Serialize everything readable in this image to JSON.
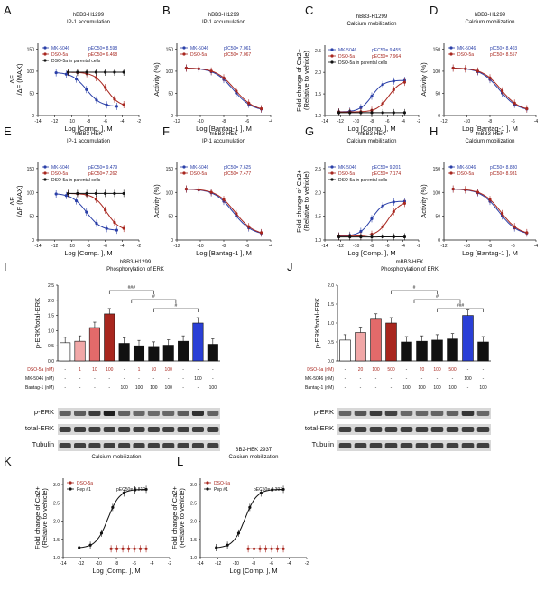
{
  "colors": {
    "blue": "#2a3fa8",
    "red": "#a8261e",
    "black": "#111111",
    "pink": "#f1a7a7",
    "salmon": "#e36a6a",
    "brightblue": "#2a3fd6"
  },
  "panels": [
    {
      "letter": "A",
      "t1": "hBB3-H1299",
      "t2": "IP-1 accumulation",
      "ylabel": "ΔF",
      "ylabel2": "/ΔF (MAX)",
      "xlabel": "Log [Comp. ], M",
      "xticks": [
        "-14",
        "-12",
        "-10",
        "-8",
        "-6",
        "-4",
        "-2"
      ],
      "yticks": [
        "0",
        "50",
        "100",
        "150"
      ],
      "legend": [
        {
          "name": "MK-5046",
          "p": "pEC50= 8.598"
        },
        {
          "name": "DSO-5a",
          "p": "pEC50= 6.468"
        },
        {
          "name": "DSO-5a in parental cells",
          "p": ""
        }
      ]
    },
    {
      "letter": "B",
      "t1": "hBB3-H1299",
      "t2": "IP-1 accumulation",
      "ylabel": "Activity (%)",
      "ylabel2": "",
      "xlabel": "Log [Bantag-1 ], M",
      "xticks": [
        "-12",
        "-10",
        "-8",
        "-6",
        "-4"
      ],
      "yticks": [
        "0",
        "50",
        "100",
        "150"
      ],
      "legend": [
        {
          "name": "MK-5046",
          "p": "pIC50= 7.061"
        },
        {
          "name": "DSO-5a",
          "p": "pIC50= 7.067"
        }
      ]
    },
    {
      "letter": "C",
      "t1": "hBB3-H1299",
      "t2": "Calcium mobilization",
      "ylabel": "Fold change of Ca2+",
      "ylabel2": "(Relative to vehicle)",
      "xlabel": "Log [Comp. ], M",
      "xticks": [
        "-14",
        "-12",
        "-10",
        "-8",
        "-6",
        "-4",
        "-2"
      ],
      "yticks": [
        "1.0",
        "1.5",
        "2.0",
        "2.5"
      ],
      "legend": [
        {
          "name": "MK-5046",
          "p": "pEC50= 9.455"
        },
        {
          "name": "DSO-5a",
          "p": "pEC50= 7.964"
        },
        {
          "name": "DSO-5a in parental cells",
          "p": ""
        }
      ]
    },
    {
      "letter": "D",
      "t1": "hBB3-H1299",
      "t2": "Calcium mobilization",
      "ylabel": "Activity (%)",
      "ylabel2": "",
      "xlabel": "Log [Bantag-1 ], M",
      "xticks": [
        "-12",
        "-10",
        "-8",
        "-6",
        "-4"
      ],
      "yticks": [
        "0",
        "50",
        "100",
        "150"
      ],
      "legend": [
        {
          "name": "MK-5046",
          "p": "pIC50= 8.403"
        },
        {
          "name": "DSO-5a",
          "p": "pIC50= 8.557"
        }
      ]
    },
    {
      "letter": "E",
      "t1": "mBB3-HEK",
      "t2": "IP-1 accumulation",
      "ylabel": "ΔF",
      "ylabel2": "/ΔF (MAX)",
      "xlabel": "Log [Comp. ], M",
      "xticks": [
        "-14",
        "-12",
        "-10",
        "-8",
        "-6",
        "-4",
        "-2"
      ],
      "yticks": [
        "0",
        "50",
        "100",
        "150"
      ],
      "legend": [
        {
          "name": "MK-5046",
          "p": "pEC50= 9.479"
        },
        {
          "name": "DSO-5a",
          "p": "pEC50= 7.262"
        },
        {
          "name": "DSO-5a in parental cells",
          "p": ""
        }
      ]
    },
    {
      "letter": "F",
      "t1": "mBB3-HEK",
      "t2": "IP-1 accumulation",
      "ylabel": "Activity (%)",
      "ylabel2": "",
      "xlabel": "Log [Bantag-1 ], M",
      "xticks": [
        "-12",
        "-10",
        "-8",
        "-6",
        "-4"
      ],
      "yticks": [
        "0",
        "50",
        "100",
        "150"
      ],
      "legend": [
        {
          "name": "MK-5046",
          "p": "pIC50= 7.625"
        },
        {
          "name": "DSO-5a",
          "p": "pIC50= 7.477"
        }
      ]
    },
    {
      "letter": "G",
      "t1": "mBB3-HEK",
      "t2": "Calcium mobilization",
      "ylabel": "Fold change of Ca2+",
      "ylabel2": "(Relative to vehicle)",
      "xlabel": "Log [Comp. ], M",
      "xticks": [
        "-14",
        "-12",
        "-10",
        "-8",
        "-6",
        "-4",
        "-2"
      ],
      "yticks": [
        "1.0",
        "1.5",
        "2.0",
        "2.5"
      ],
      "legend": [
        {
          "name": "MK-5046",
          "p": "pEC50= 9.201"
        },
        {
          "name": "DSO-5a",
          "p": "pEC50= 7.174"
        },
        {
          "name": "DSO-5a in parental cells",
          "p": ""
        }
      ]
    },
    {
      "letter": "H",
      "t1": "mBB3-HEK",
      "t2": "Calcium mobilization",
      "ylabel": "Activity (%)",
      "ylabel2": "",
      "xlabel": "Log [Bantag-1 ], M",
      "xticks": [
        "-12",
        "-10",
        "-8",
        "-6",
        "-4"
      ],
      "yticks": [
        "0",
        "50",
        "100",
        "150"
      ],
      "legend": [
        {
          "name": "MK-5046",
          "p": "pIC50= 8.880"
        },
        {
          "name": "DSO-5a",
          "p": "pIC50= 8.931"
        }
      ]
    },
    {
      "letter": "K",
      "t1": "BB1-HEK 293T",
      "t2": "Calcium mobilization",
      "ylabel": "Fold change of Ca2+",
      "ylabel2": "(Relative to vehicle)",
      "xlabel": "Log [Comp. ], M",
      "xticks": [
        "-14",
        "-12",
        "-10",
        "-8",
        "-6",
        "-4",
        "-2"
      ],
      "yticks": [
        "1.0",
        "1.5",
        "2.0",
        "2.5",
        "3.0"
      ],
      "legend": [
        {
          "name": "DSO-5a",
          "p": ""
        },
        {
          "name": "Pep #1",
          "p": "pEC50= 9.810"
        }
      ]
    },
    {
      "letter": "L",
      "t1": "BB2-HEK 293T",
      "t2": "Calcium mobilization",
      "ylabel": "Fold change of Ca2+",
      "ylabel2": "(Relative to vehicle)",
      "xlabel": "Log [Comp. ], M",
      "xticks": [
        "-14",
        "-12",
        "-10",
        "-8",
        "-6",
        "-4",
        "-2"
      ],
      "yticks": [
        "1.0",
        "1.5",
        "2.0",
        "2.5",
        "3.0"
      ],
      "legend": [
        {
          "name": "DSO-5a",
          "p": ""
        },
        {
          "name": "Pep #1",
          "p": "pEC50= 9.393"
        }
      ]
    }
  ],
  "bars": [
    {
      "letter": "I",
      "t1": "hBB3-H1299",
      "t2": "Phosphorylation of ERK",
      "ylabel": "p-ERK/total-ERK",
      "yticks": [
        "0.0",
        "0.5",
        "1.0",
        "1.5",
        "2.0",
        "2.5"
      ],
      "values": [
        0.6,
        0.65,
        1.1,
        1.55,
        0.58,
        0.5,
        0.45,
        0.52,
        0.65,
        1.25,
        0.55
      ],
      "rows": [
        {
          "label": "DSO-5a (nM)",
          "vals": [
            "-",
            "1",
            "10",
            "100",
            "-",
            "1",
            "10",
            "100",
            "-",
            "-",
            "-"
          ]
        },
        {
          "label": "MK-5046 (nM)",
          "vals": [
            "-",
            "-",
            "-",
            "-",
            "-",
            "-",
            "-",
            "-",
            "-",
            "100",
            "-"
          ]
        },
        {
          "label": "Bantag-1 (nM)",
          "vals": [
            "-",
            "-",
            "-",
            "-",
            "100",
            "100",
            "100",
            "100",
            "-",
            "-",
            "100"
          ]
        }
      ],
      "sig": [
        "###",
        "#",
        "#"
      ],
      "blots": [
        "p-ERK",
        "total-ERK",
        "Tubulin"
      ]
    },
    {
      "letter": "J",
      "t1": "mBB3-HEK",
      "t2": "Phosphorylation of ERK",
      "ylabel": "p-ERK/total-ERK",
      "yticks": [
        "0.0",
        "0.5",
        "1.0",
        "1.5",
        "2.0"
      ],
      "values": [
        0.55,
        0.75,
        1.1,
        1.0,
        0.5,
        0.52,
        0.55,
        0.58,
        1.2,
        0.5
      ],
      "rows": [
        {
          "label": "DSO-5a (nM)",
          "vals": [
            "-",
            "20",
            "100",
            "500",
            "-",
            "20",
            "100",
            "500",
            "-",
            "-"
          ]
        },
        {
          "label": "MK-5046 (nM)",
          "vals": [
            "-",
            "-",
            "-",
            "-",
            "-",
            "-",
            "-",
            "-",
            "100",
            "-"
          ]
        },
        {
          "label": "Bantag-1 (nM)",
          "vals": [
            "-",
            "-",
            "-",
            "-",
            "100",
            "100",
            "100",
            "100",
            "-",
            "100"
          ]
        }
      ],
      "sig": [
        "#",
        "#",
        "###"
      ],
      "blots": [
        "p-ERK",
        "total-ERK",
        "Tubulin"
      ]
    }
  ]
}
